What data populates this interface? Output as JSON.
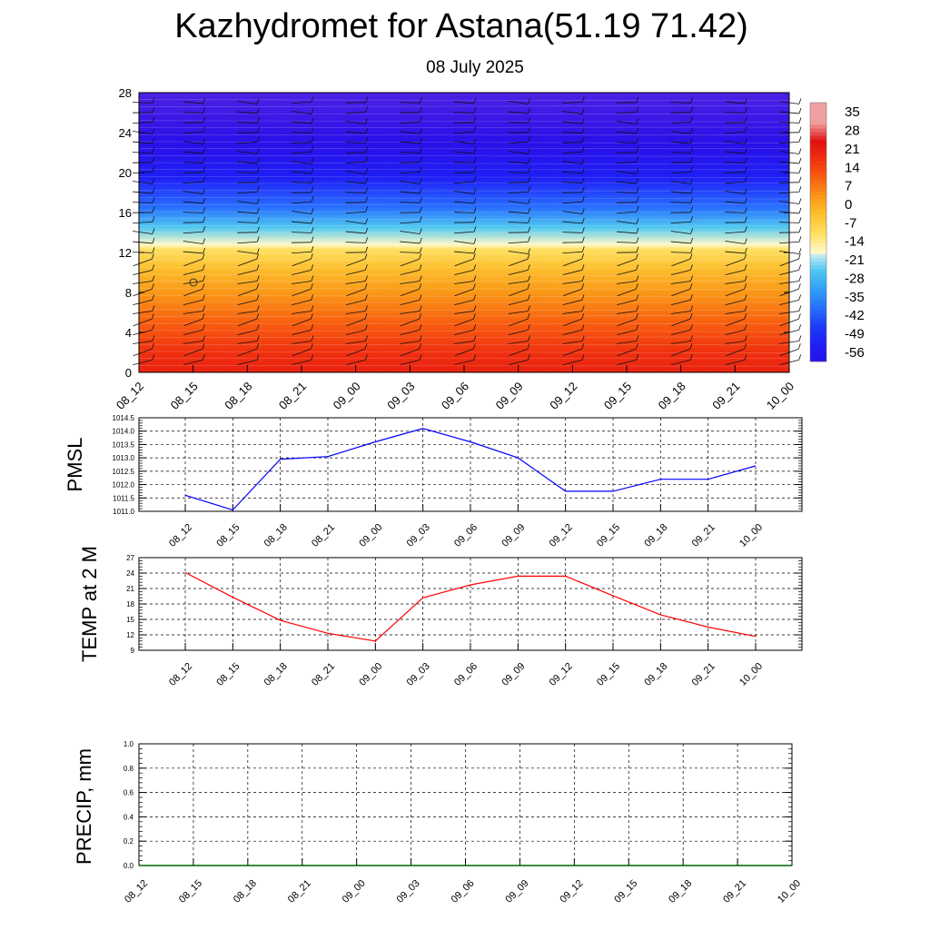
{
  "header": {
    "title": "Kazhydromet for Astana(51.19 71.42)",
    "date": "08 July 2025"
  },
  "chart_data": [
    {
      "type": "heatmap",
      "title": "Kazhydromet for Astana(51.19 71.42)",
      "subtitle": "08 July 2025",
      "x_labels": [
        "08_12",
        "08_15",
        "08_18",
        "08_21",
        "09_00",
        "09_03",
        "09_06",
        "09_09",
        "09_12",
        "09_15",
        "09_18",
        "09_21",
        "10_00"
      ],
      "y_ticks": [
        0,
        4,
        8,
        12,
        16,
        20,
        24,
        28
      ],
      "ylim": [
        0,
        28
      ],
      "colorbar": {
        "labels": [
          "35",
          "28",
          "21",
          "14",
          "7",
          "0",
          "-7",
          "-14",
          "-21",
          "-28",
          "-35",
          "-42",
          "-49",
          "-56"
        ],
        "colors": [
          "#f7b4b4",
          "#e81010",
          "#f02810",
          "#f85010",
          "#fa8010",
          "#fcb020",
          "#fde070",
          "#fff7c0",
          "#cff0ff",
          "#40c0f0",
          "#3080ff",
          "#2040ff",
          "#2020f0",
          "#6020e8"
        ]
      },
      "temperature_profile": [
        {
          "level": 0,
          "value": 24
        },
        {
          "level": 2,
          "value": 21
        },
        {
          "level": 5,
          "value": 14
        },
        {
          "level": 8,
          "value": 7
        },
        {
          "level": 10.5,
          "value": 0
        },
        {
          "level": 12.3,
          "value": -7
        },
        {
          "level": 12.8,
          "value": -14
        },
        {
          "level": 14.5,
          "value": -21
        },
        {
          "level": 16.5,
          "value": -35
        },
        {
          "level": 19.5,
          "value": -49
        },
        {
          "level": 23,
          "value": -56
        },
        {
          "level": 28,
          "value": -58
        }
      ],
      "wind_barbs": "present"
    },
    {
      "type": "line",
      "ylabel": "PMSL",
      "x": [
        "08_12",
        "08_15",
        "08_18",
        "08_21",
        "09_00",
        "09_03",
        "09_06",
        "09_09",
        "09_12",
        "09_15",
        "09_18",
        "09_21",
        "10_00"
      ],
      "series": [
        {
          "values": [
            1011.6,
            1011.05,
            1012.95,
            1013.05,
            1013.6,
            1014.1,
            1013.6,
            1013.0,
            1011.75,
            1011.75,
            1012.2,
            1012.2,
            1012.7
          ],
          "color": "#0000ff"
        }
      ],
      "ylim": [
        1011.0,
        1014.5
      ],
      "y_ticks": [
        "1011.0",
        "1011.5",
        "1012.0",
        "1012.5",
        "1013.0",
        "1013.5",
        "1014.0",
        "1014.5"
      ],
      "grid": true
    },
    {
      "type": "line",
      "ylabel": "TEMP at 2 M",
      "x": [
        "08_12",
        "08_15",
        "08_18",
        "08_21",
        "09_00",
        "09_03",
        "09_06",
        "09_09",
        "09_12",
        "09_15",
        "09_18",
        "09_21",
        "10_00"
      ],
      "series": [
        {
          "values": [
            24.1,
            19.3,
            14.8,
            12.3,
            10.8,
            19.2,
            21.7,
            23.4,
            23.4,
            19.6,
            15.9,
            13.5,
            11.7
          ],
          "color": "#ff0000"
        }
      ],
      "ylim": [
        9,
        27
      ],
      "y_ticks": [
        "9",
        "12",
        "15",
        "18",
        "21",
        "24",
        "27"
      ],
      "grid": true
    },
    {
      "type": "line",
      "ylabel": "PRECIP, mm",
      "x": [
        "08_12",
        "08_15",
        "08_18",
        "08_21",
        "09_00",
        "09_03",
        "09_06",
        "09_09",
        "09_12",
        "09_15",
        "09_18",
        "09_21",
        "10_00"
      ],
      "series": [
        {
          "values": [
            0,
            0,
            0,
            0,
            0,
            0,
            0,
            0,
            0,
            0,
            0,
            0,
            0
          ],
          "color": "#006400"
        }
      ],
      "ylim": [
        0,
        1.0
      ],
      "y_ticks": [
        "0.0",
        "0.2",
        "0.4",
        "0.6",
        "0.8",
        "1.0"
      ],
      "grid": true
    }
  ]
}
